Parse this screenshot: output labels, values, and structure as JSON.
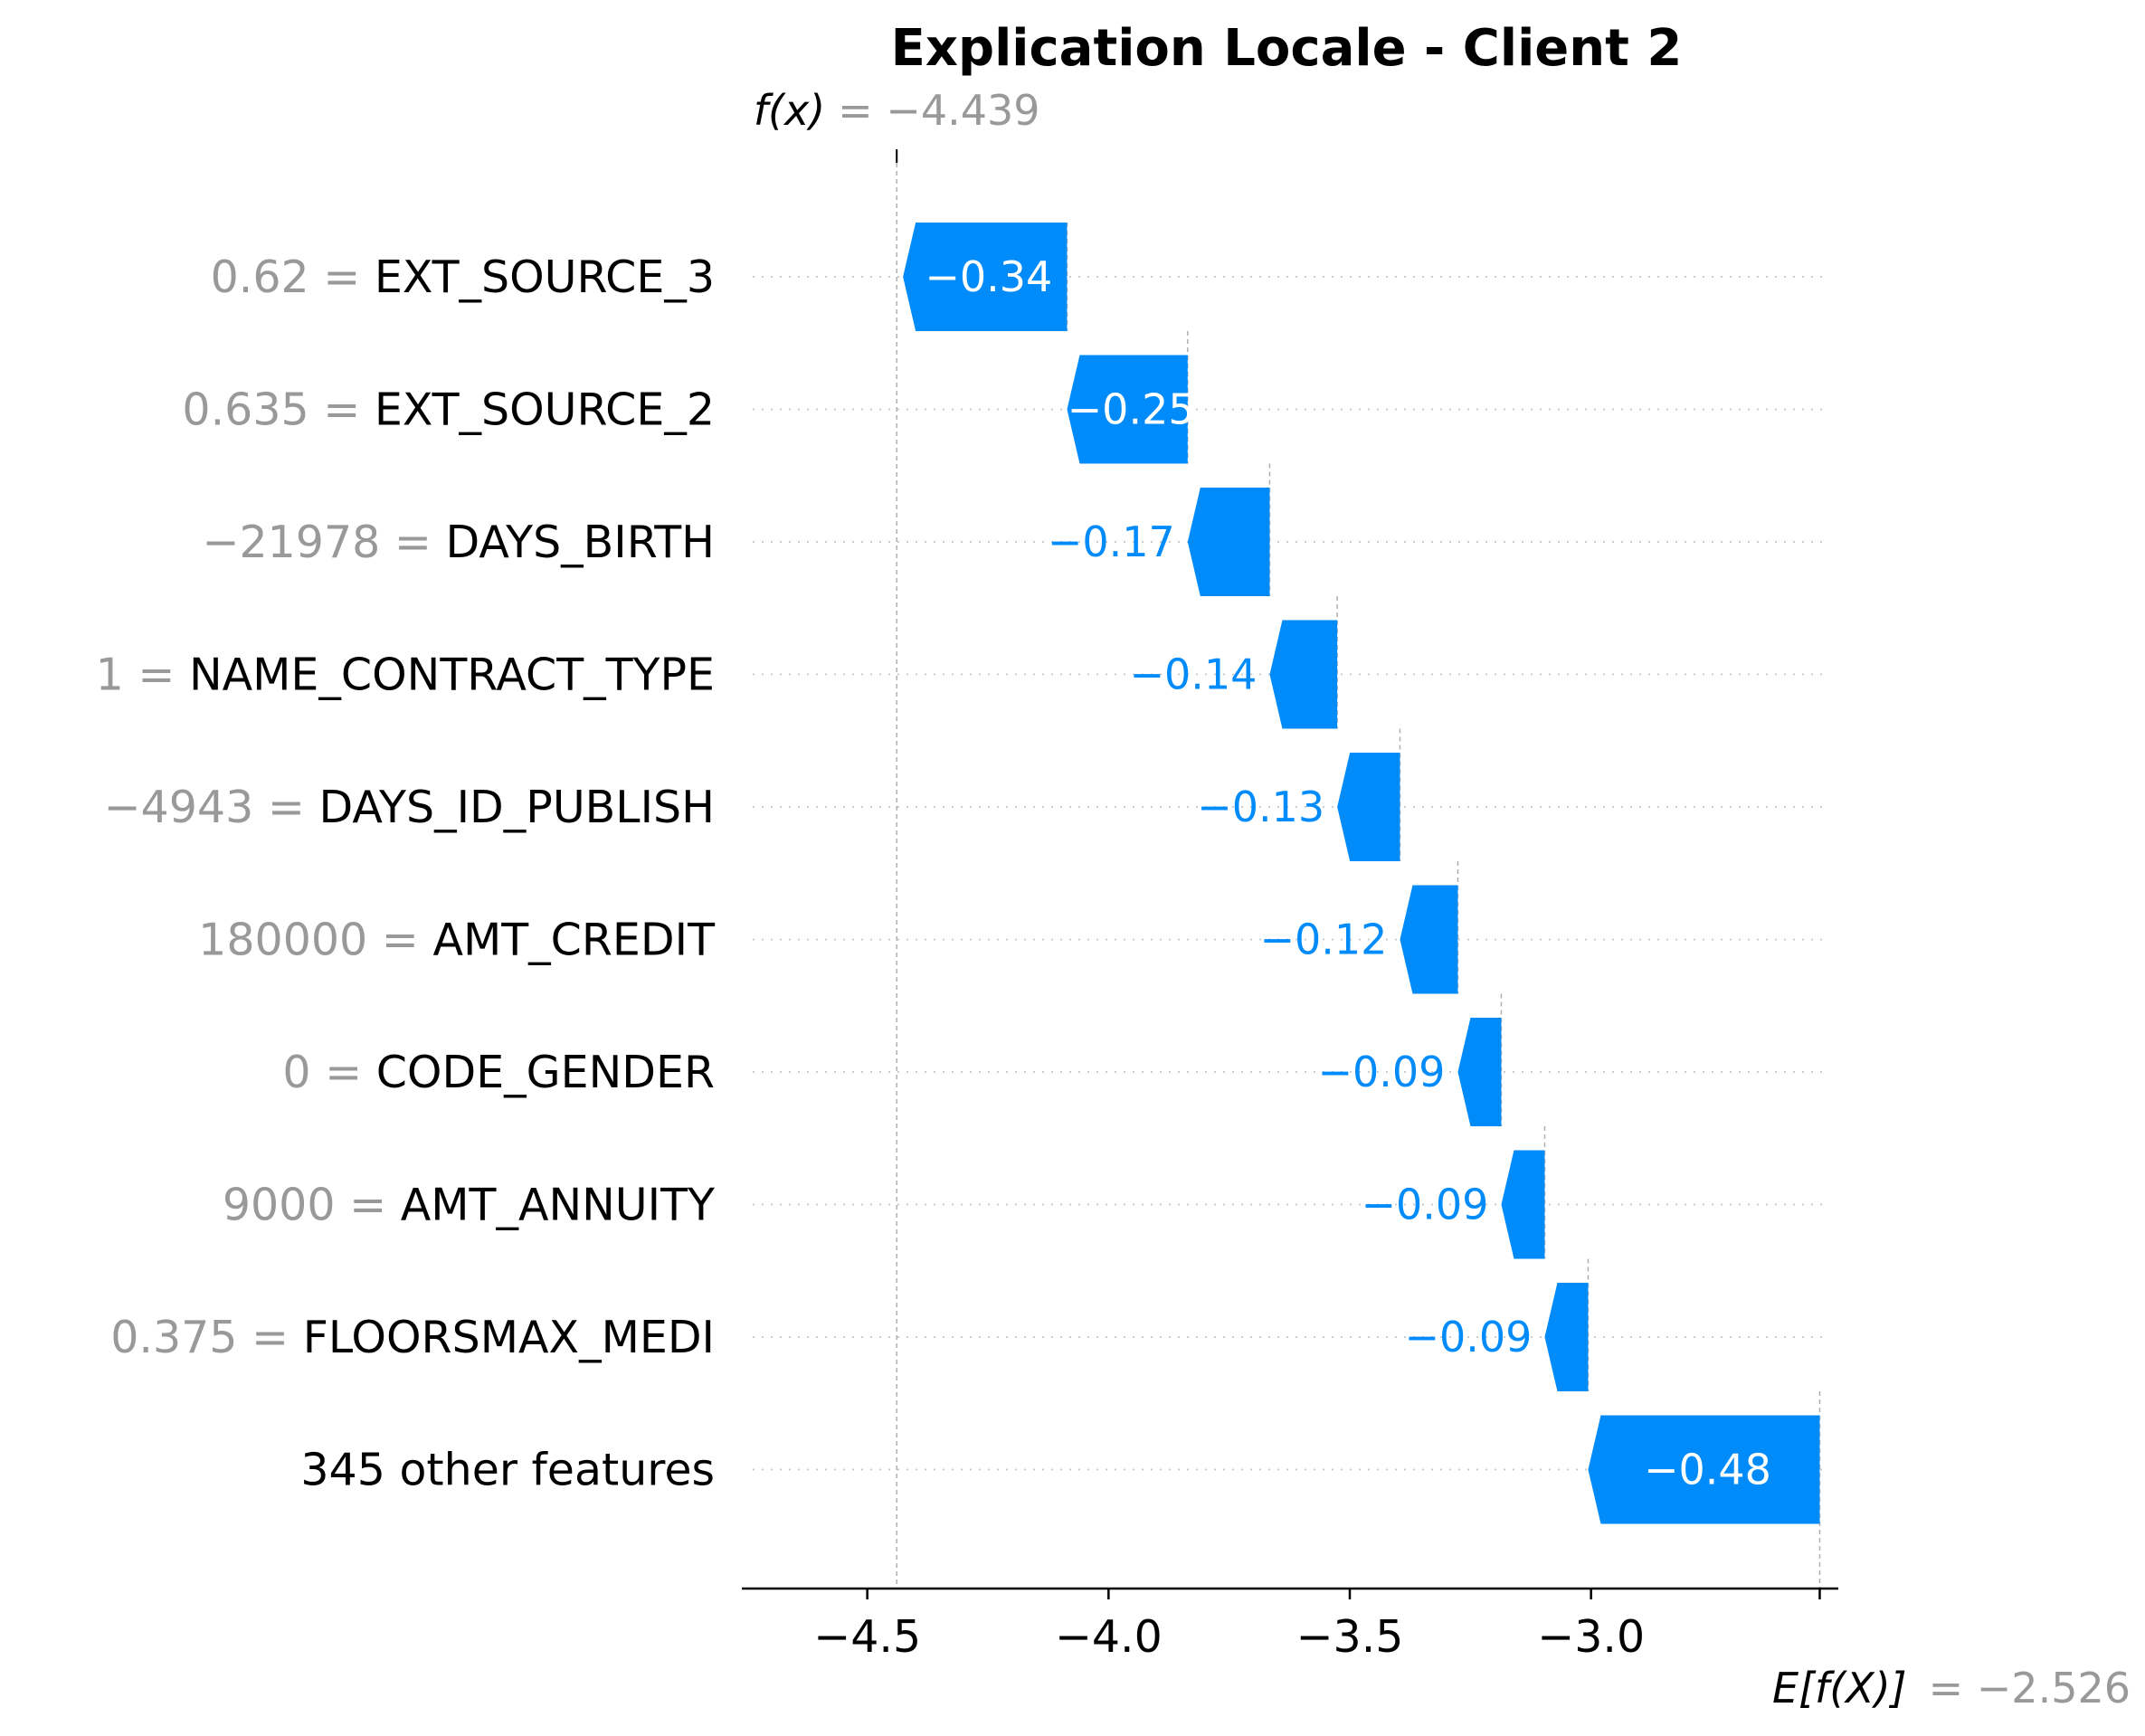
{
  "chart_data": {
    "type": "waterfall",
    "title": "Explication Locale - Client 2",
    "fx": {
      "label": "f(x)",
      "value_text": "= −4.439",
      "value": -4.439
    },
    "ex": {
      "label": "E[f(X)]",
      "value_text": "= −2.526",
      "value": -2.526
    },
    "features": [
      {
        "value": "0.62",
        "name": "EXT_SOURCE_3",
        "shap": -0.34,
        "label": "−0.34"
      },
      {
        "value": "0.635",
        "name": "EXT_SOURCE_2",
        "shap": -0.25,
        "label": "−0.25"
      },
      {
        "value": "−21978",
        "name": "DAYS_BIRTH",
        "shap": -0.17,
        "label": "−0.17"
      },
      {
        "value": "1",
        "name": "NAME_CONTRACT_TYPE",
        "shap": -0.14,
        "label": "−0.14"
      },
      {
        "value": "−4943",
        "name": "DAYS_ID_PUBLISH",
        "shap": -0.13,
        "label": "−0.13"
      },
      {
        "value": "180000",
        "name": "AMT_CREDIT",
        "shap": -0.12,
        "label": "−0.12"
      },
      {
        "value": "0",
        "name": "CODE_GENDER",
        "shap": -0.09,
        "label": "−0.09"
      },
      {
        "value": "9000",
        "name": "AMT_ANNUITY",
        "shap": -0.09,
        "label": "−0.09"
      },
      {
        "value": "0.375",
        "name": "FLOORSMAX_MEDI",
        "shap": -0.09,
        "label": "−0.09"
      },
      {
        "value": "",
        "name": "345 other features",
        "shap": -0.48,
        "label": "−0.48"
      }
    ],
    "xticks": [
      -4.5,
      -4.0,
      -3.5,
      -3.0
    ],
    "xtick_labels": [
      "−4.5",
      "−4.0",
      "−3.5",
      "−3.0"
    ],
    "xlim": [
      -4.76,
      -2.51
    ],
    "colors": {
      "negative": "#008bfb",
      "label_outside": "#008bfb",
      "label_inside": "#ffffff",
      "muted": "#999999"
    }
  }
}
